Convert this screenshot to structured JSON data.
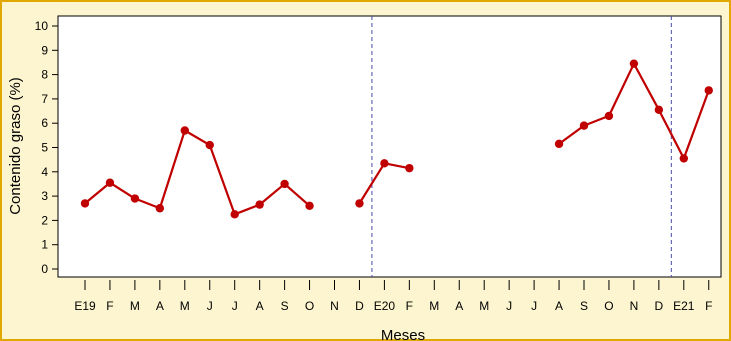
{
  "chart_data": {
    "type": "line",
    "xlabel": "Meses",
    "ylabel": "Contenido graso (%)",
    "ylim": [
      0,
      10
    ],
    "yticks": [
      0,
      1,
      2,
      3,
      4,
      5,
      6,
      7,
      8,
      9,
      10
    ],
    "grid": false,
    "x_tick_labels": [
      "E19",
      "F",
      "M",
      "A",
      "M",
      "J",
      "J",
      "A",
      "S",
      "O",
      "N",
      "D",
      "E20",
      "F",
      "M",
      "A",
      "M",
      "J",
      "J",
      "A",
      "S",
      "O",
      "N",
      "D",
      "E21",
      "F"
    ],
    "series": [
      {
        "color": "#c00000",
        "values": [
          2.7,
          3.55,
          2.9,
          2.5,
          5.7,
          5.1,
          2.25,
          2.65,
          3.5,
          2.6,
          null,
          2.7,
          4.35,
          4.15,
          null,
          null,
          null,
          null,
          null,
          5.15,
          5.9,
          6.3,
          8.45,
          6.55,
          4.55,
          7.35
        ]
      }
    ],
    "year_separators_between": [
      [
        11,
        12
      ],
      [
        23,
        24
      ]
    ],
    "separator_color": "#4a4aa8"
  }
}
